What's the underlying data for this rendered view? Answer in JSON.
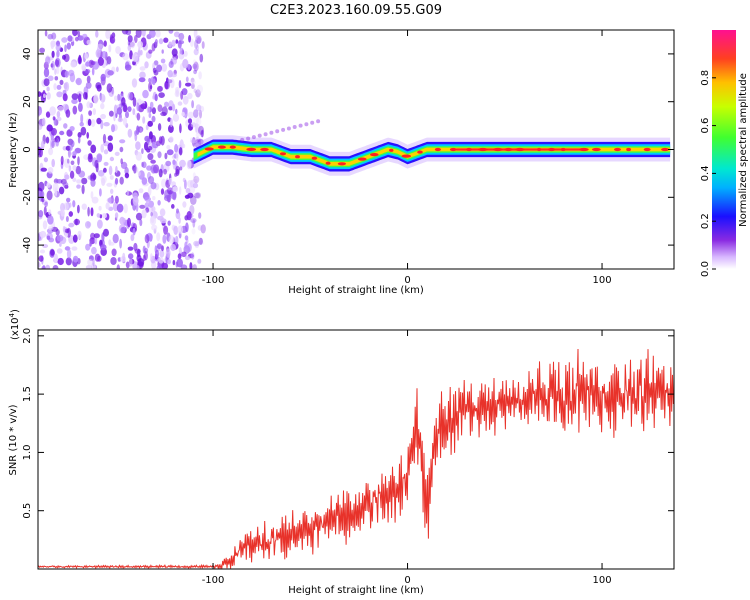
{
  "title": "C2E3.2023.160.09.55.G09",
  "colors": {
    "series": "#e8322a",
    "axis": "#000000",
    "scatter": "#7a1ee6"
  },
  "chart_data": [
    {
      "type": "heatmap",
      "xlabel": "Height of straight line (km)",
      "ylabel": "Frequency (Hz)",
      "xlim": [
        -190,
        137
      ],
      "ylim": [
        -50,
        50
      ],
      "x_ticks": [
        "-100",
        "0",
        "100"
      ],
      "x_tick_values": [
        -100,
        0,
        100
      ],
      "y_ticks": [
        "-40",
        "-20",
        "0",
        "20",
        "40"
      ],
      "y_tick_values": [
        -40,
        -20,
        0,
        20,
        40
      ],
      "colorbar": {
        "label": "Normalized spectral amplitude",
        "ticks": [
          "0.0",
          "0.2",
          "0.4",
          "0.6",
          "0.8"
        ],
        "tick_values": [
          0.0,
          0.2,
          0.4,
          0.6,
          0.8
        ],
        "range": [
          0,
          1
        ]
      },
      "noise_region_x": [
        -190,
        -105
      ],
      "frequency_track": [
        [
          -110,
          -3
        ],
        [
          -100,
          1
        ],
        [
          -90,
          1
        ],
        [
          -80,
          0
        ],
        [
          -70,
          0
        ],
        [
          -60,
          -3
        ],
        [
          -50,
          -3
        ],
        [
          -40,
          -6
        ],
        [
          -30,
          -6
        ],
        [
          -20,
          -3
        ],
        [
          -10,
          0
        ],
        [
          -5,
          -1
        ],
        [
          0,
          -3
        ],
        [
          10,
          0
        ],
        [
          20,
          0
        ],
        [
          40,
          0
        ],
        [
          60,
          0
        ],
        [
          80,
          0
        ],
        [
          100,
          0
        ],
        [
          120,
          0
        ],
        [
          135,
          0
        ]
      ]
    },
    {
      "type": "line",
      "xlabel": "Height of straight line (km)",
      "ylabel": "SNR (10 * v/v)",
      "y_scale_label": "(x10",
      "y_scale_exp": "4",
      "xlim": [
        -190,
        137
      ],
      "ylim": [
        0,
        2.05
      ],
      "x_ticks": [
        "-100",
        "0",
        "100"
      ],
      "x_tick_values": [
        -100,
        0,
        100
      ],
      "y_ticks": [
        "0.5",
        "1.0",
        "1.5",
        "2.0"
      ],
      "y_tick_values": [
        0.5,
        1.0,
        1.5,
        2.0
      ],
      "series": [
        {
          "name": "SNR",
          "trend": [
            [
              -190,
              0.02
            ],
            [
              -100,
              0.02
            ],
            [
              -92,
              0.04
            ],
            [
              -85,
              0.2
            ],
            [
              -70,
              0.25
            ],
            [
              -50,
              0.35
            ],
            [
              -40,
              0.4
            ],
            [
              -20,
              0.55
            ],
            [
              -10,
              0.65
            ],
            [
              0,
              0.8
            ],
            [
              5,
              1.2
            ],
            [
              10,
              0.6
            ],
            [
              15,
              1.1
            ],
            [
              25,
              1.3
            ],
            [
              40,
              1.42
            ],
            [
              60,
              1.48
            ],
            [
              80,
              1.5
            ],
            [
              100,
              1.52
            ],
            [
              120,
              1.52
            ],
            [
              137,
              1.5
            ]
          ],
          "noise_amplitude": [
            [
              -190,
              0.01
            ],
            [
              -100,
              0.01
            ],
            [
              -90,
              0.08
            ],
            [
              -80,
              0.15
            ],
            [
              -40,
              0.2
            ],
            [
              -10,
              0.25
            ],
            [
              10,
              0.35
            ],
            [
              30,
              0.25
            ],
            [
              80,
              0.3
            ],
            [
              137,
              0.35
            ]
          ]
        }
      ]
    }
  ]
}
